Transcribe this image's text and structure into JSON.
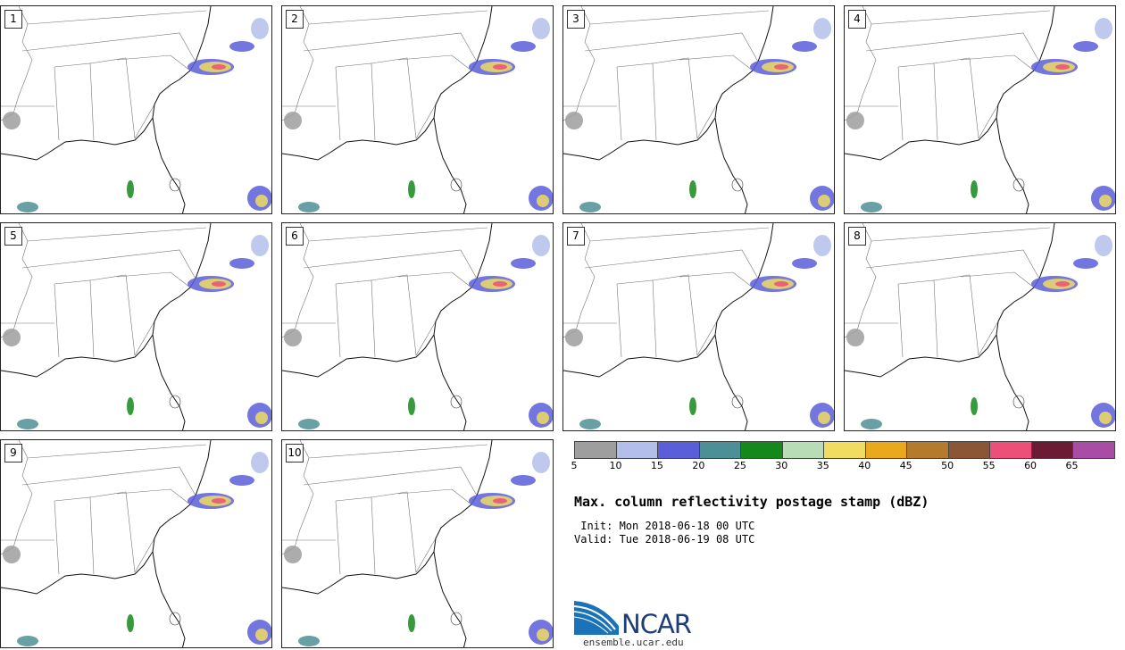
{
  "panels": [
    "1",
    "2",
    "3",
    "4",
    "5",
    "6",
    "7",
    "8",
    "9",
    "10"
  ],
  "colorbar": {
    "colors": [
      "#9e9e9e",
      "#b3bfea",
      "#5a5ed8",
      "#4d8f96",
      "#14881a",
      "#b7dcb6",
      "#efdc61",
      "#eaa81c",
      "#b57b2d",
      "#8a5636",
      "#ec4f77",
      "#6b1b34",
      "#a94ca6"
    ],
    "ticks": [
      "5",
      "10",
      "15",
      "20",
      "25",
      "30",
      "35",
      "40",
      "45",
      "50",
      "55",
      "60",
      "65"
    ]
  },
  "title": "Max. column reflectivity postage stamp (dBZ)",
  "init": " Init: Mon 2018-06-18 00 UTC",
  "valid": "Valid: Tue 2018-06-19 08 UTC",
  "logo": {
    "word": "NCAR",
    "url": "ensemble.ucar.edu"
  }
}
